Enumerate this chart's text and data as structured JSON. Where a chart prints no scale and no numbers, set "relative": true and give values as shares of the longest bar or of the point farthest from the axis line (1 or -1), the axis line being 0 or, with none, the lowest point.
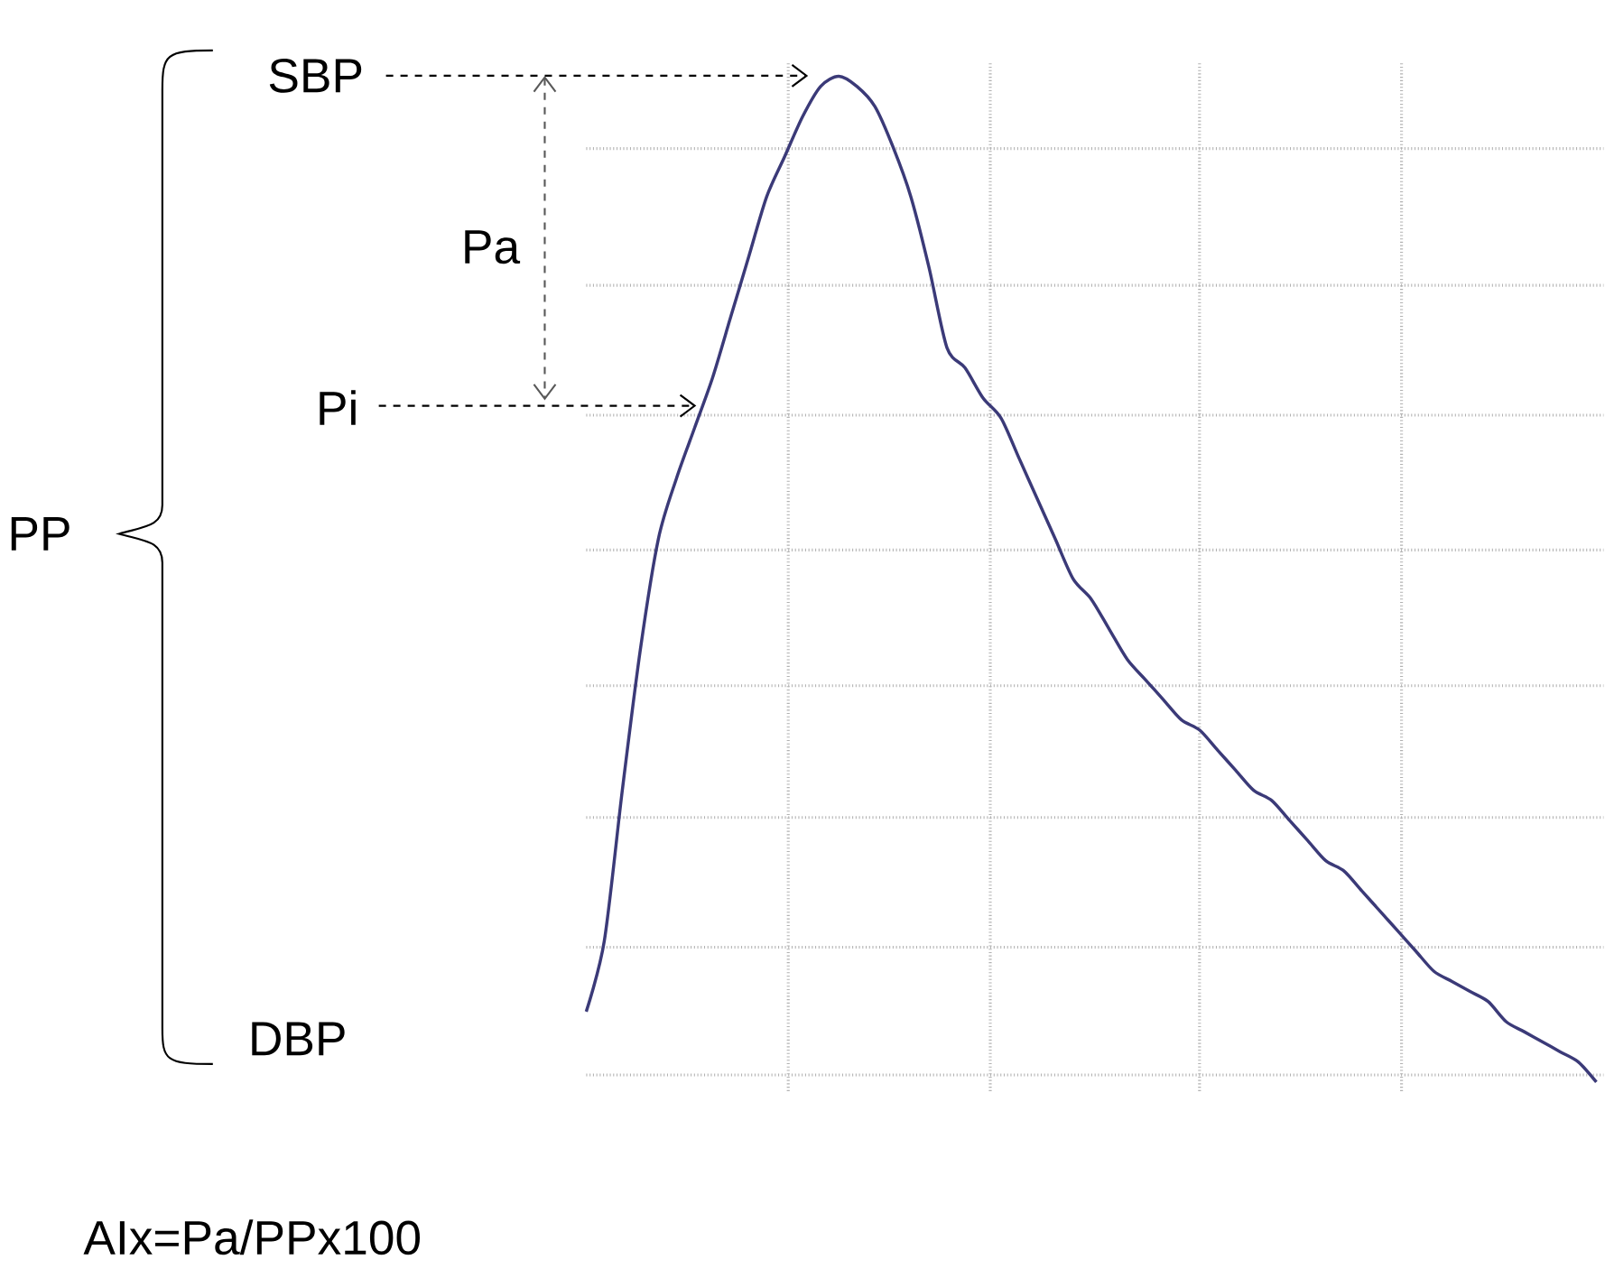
{
  "chart_data": {
    "type": "line",
    "relative": true,
    "grid": true,
    "color": "#3b3a78",
    "categories": [
      null,
      null,
      null,
      null,
      null,
      null,
      null,
      null,
      null,
      null,
      null,
      null,
      null,
      null,
      null,
      null,
      null,
      null,
      null,
      null,
      null,
      null,
      null,
      null,
      null,
      null,
      null,
      null,
      null,
      null,
      null,
      null,
      null,
      null,
      null,
      null,
      null,
      null,
      null,
      null,
      null,
      null,
      null,
      null,
      null,
      null,
      null,
      null,
      null,
      null,
      null,
      null,
      null,
      null,
      null,
      null,
      null
    ],
    "values": [
      0.07,
      0.14,
      0.29,
      0.43,
      0.54,
      0.6,
      0.65,
      0.7,
      0.76,
      0.82,
      0.88,
      0.92,
      0.96,
      0.99,
      1.0,
      0.99,
      0.97,
      0.93,
      0.88,
      0.81,
      0.73,
      0.71,
      0.68,
      0.66,
      0.62,
      0.58,
      0.54,
      0.5,
      0.48,
      0.45,
      0.42,
      0.4,
      0.38,
      0.36,
      0.35,
      0.33,
      0.31,
      0.29,
      0.28,
      0.26,
      0.24,
      0.22,
      0.21,
      0.19,
      0.17,
      0.15,
      0.13,
      0.11,
      0.1,
      0.09,
      0.08,
      0.06,
      0.05,
      0.04,
      0.03,
      0.02,
      0.0
    ],
    "annotations": [
      "SBP",
      "Pa",
      "Pi",
      "PP",
      "DBP",
      "AIx=Pa/PPx100"
    ]
  }
}
